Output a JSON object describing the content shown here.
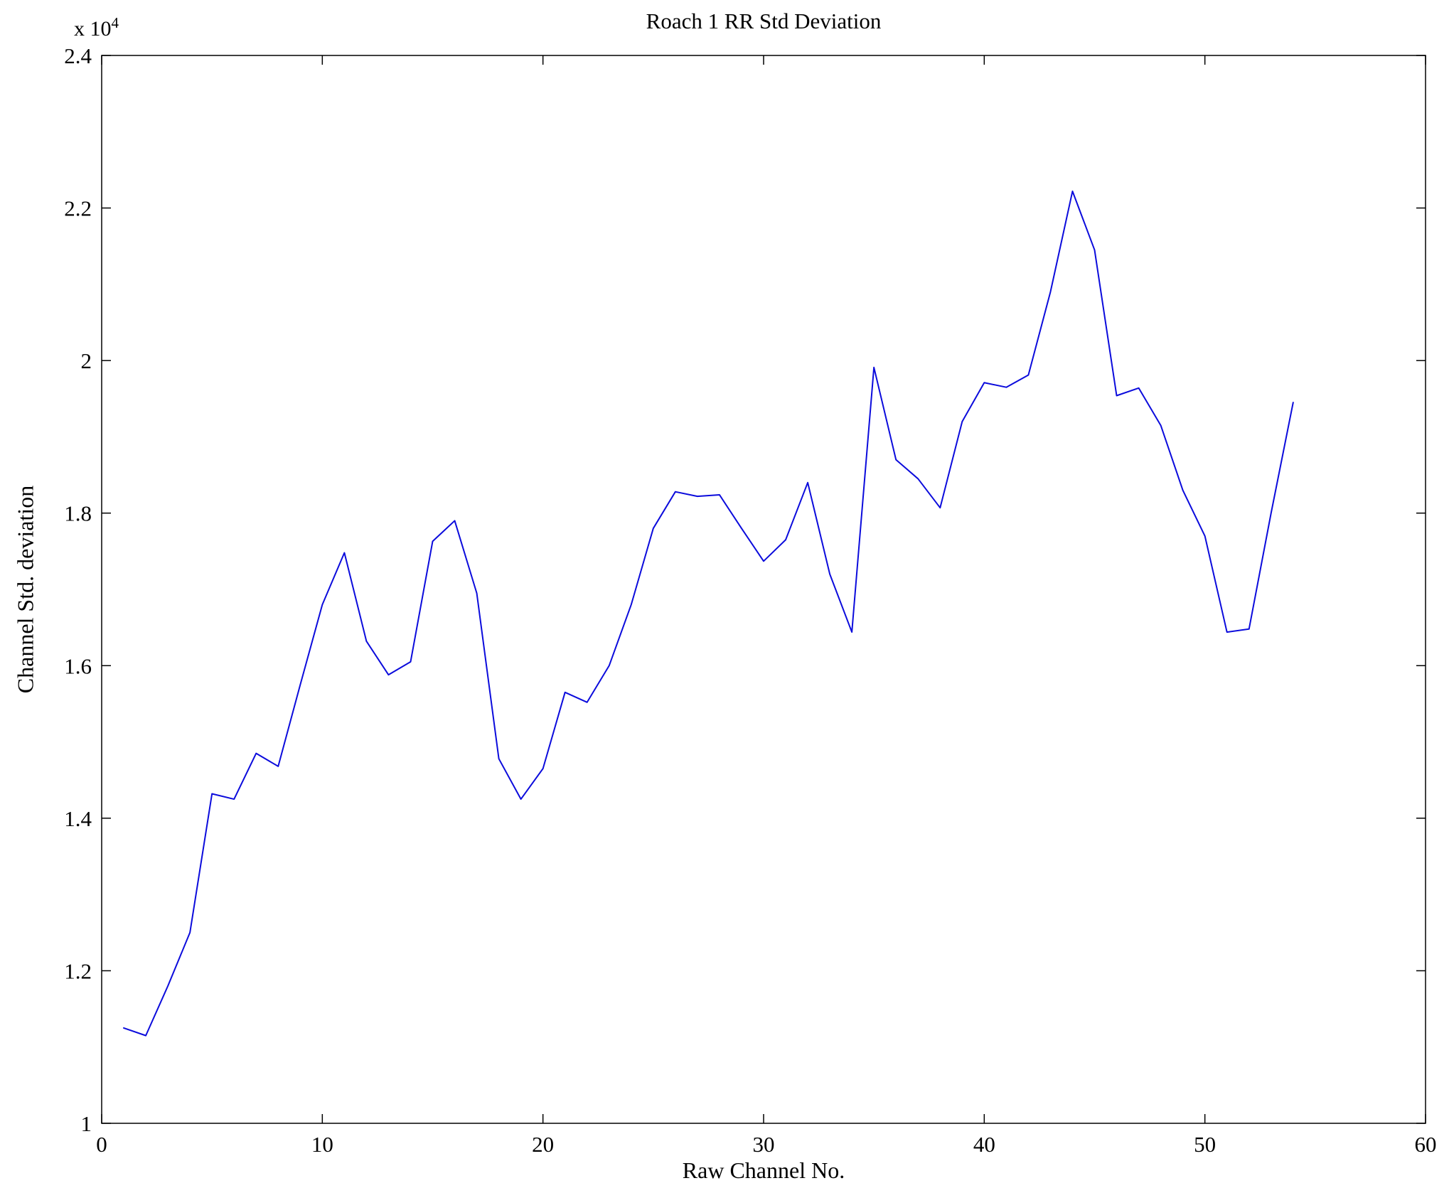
{
  "chart_data": {
    "type": "line",
    "title": "Roach 1 RR Std Deviation",
    "xlabel": "Raw Channel No.",
    "ylabel": "Channel Std. deviation",
    "y_exponent_base": "x 10",
    "y_exponent_power": "4",
    "xlim": [
      0,
      60
    ],
    "ylim": [
      1.0,
      2.4
    ],
    "y_unit_multiplier": 10000,
    "grid": false,
    "legend": null,
    "x_ticks": [
      0,
      10,
      20,
      30,
      40,
      50,
      60
    ],
    "y_ticks": [
      "1",
      "1.2",
      "1.4",
      "1.6",
      "1.8",
      "2",
      "2.2",
      "2.4"
    ],
    "y_tick_values": [
      1.0,
      1.2,
      1.4,
      1.6,
      1.8,
      2.0,
      2.2,
      2.4
    ],
    "line_color": "#0b0bdc",
    "x": [
      1,
      2,
      3,
      4,
      5,
      6,
      7,
      8,
      9,
      10,
      11,
      12,
      13,
      14,
      15,
      16,
      17,
      18,
      19,
      20,
      21,
      22,
      23,
      24,
      25,
      26,
      27,
      28,
      29,
      30,
      31,
      32,
      33,
      34,
      35,
      36,
      37,
      38,
      39,
      40,
      41,
      42,
      43,
      44,
      45,
      46,
      47,
      48,
      49,
      50,
      51,
      52,
      53,
      54
    ],
    "values": [
      1.125,
      1.115,
      1.18,
      1.25,
      1.432,
      1.425,
      1.485,
      1.468,
      1.575,
      1.68,
      1.748,
      1.632,
      1.588,
      1.605,
      1.763,
      1.79,
      1.695,
      1.478,
      1.425,
      1.465,
      1.565,
      1.552,
      1.6,
      1.68,
      1.78,
      1.828,
      1.822,
      1.824,
      1.78,
      1.737,
      1.765,
      1.84,
      1.72,
      1.644,
      1.991,
      1.87,
      1.845,
      1.807,
      1.92,
      1.971,
      1.965,
      1.981,
      2.09,
      2.222,
      2.145,
      1.954,
      1.964,
      1.915,
      1.83,
      1.77,
      1.644,
      1.648,
      1.8,
      1.945
    ]
  }
}
